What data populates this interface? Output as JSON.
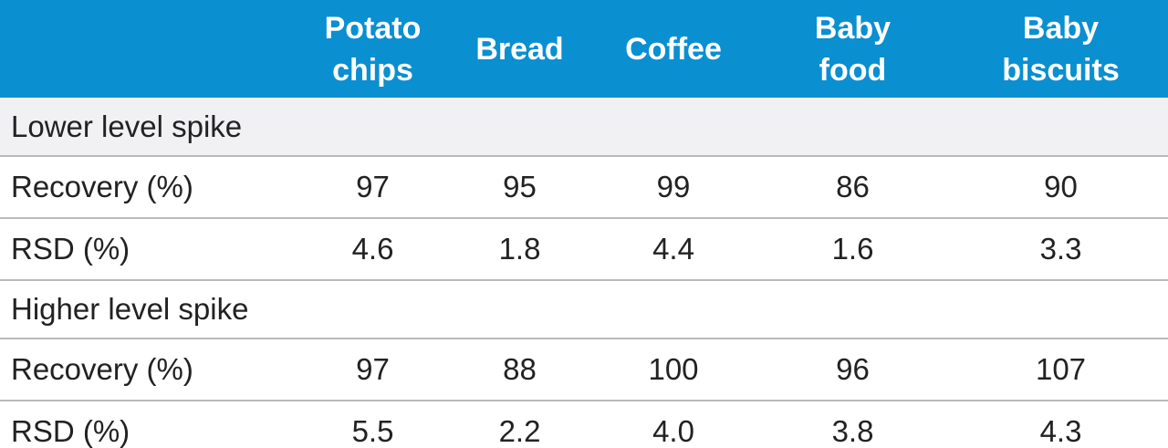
{
  "table": {
    "header": {
      "corner": "",
      "columns": [
        {
          "line1": "Potato",
          "line2": "chips"
        },
        {
          "line1": "Bread",
          "line2": ""
        },
        {
          "line1": "Coffee",
          "line2": ""
        },
        {
          "line1": "Baby",
          "line2": "food"
        },
        {
          "line1": "Baby",
          "line2": "biscuits"
        }
      ]
    },
    "sections": [
      {
        "title": "Lower level spike",
        "rows": [
          {
            "label": "Recovery (%)",
            "values": [
              "97",
              "95",
              "99",
              "86",
              "90"
            ]
          },
          {
            "label": "RSD (%)",
            "values": [
              "4.6",
              "1.8",
              "4.4",
              "1.6",
              "3.3"
            ]
          }
        ]
      },
      {
        "title": "Higher level spike",
        "rows": [
          {
            "label": "Recovery (%)",
            "values": [
              "97",
              "88",
              "100",
              "96",
              "107"
            ]
          },
          {
            "label": "RSD (%)",
            "values": [
              "5.5",
              "2.2",
              "4.0",
              "3.8",
              "4.3"
            ]
          }
        ]
      }
    ]
  },
  "colors": {
    "header_bg": "#0a8fd1",
    "header_text": "#ffffff",
    "section_bg": "#f1f1f3",
    "rule": "#b9b9b9"
  }
}
